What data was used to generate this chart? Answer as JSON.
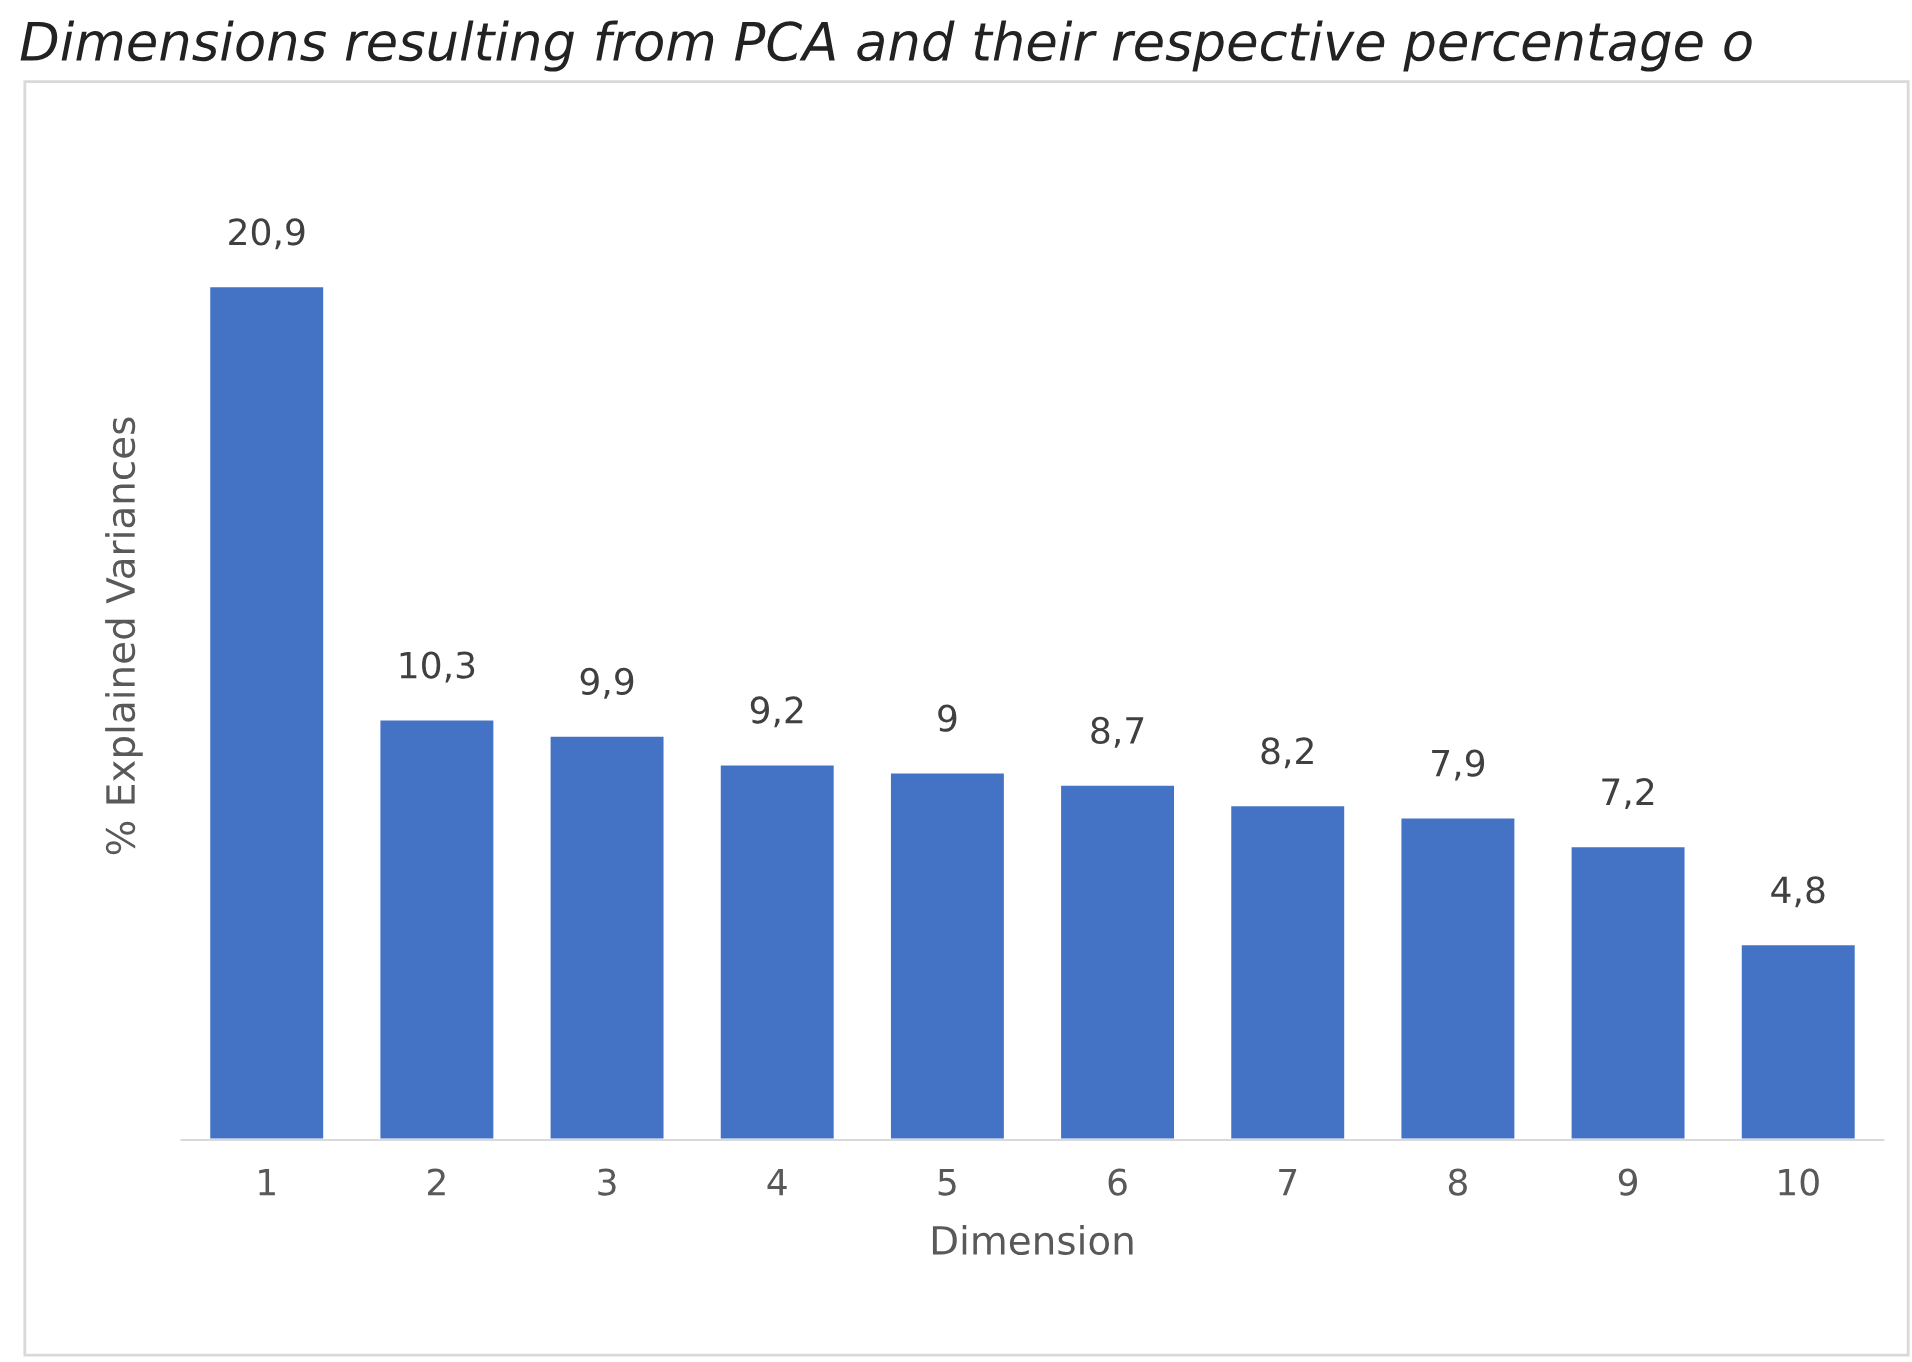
{
  "chart_data": {
    "type": "bar",
    "title": "Dimensions resulting from PCA and their respective percentage o",
    "xlabel": "Dimension",
    "ylabel": "% Explained Variances",
    "categories": [
      "1",
      "2",
      "3",
      "4",
      "5",
      "6",
      "7",
      "8",
      "9",
      "10"
    ],
    "values": [
      20.9,
      10.3,
      9.9,
      9.2,
      9,
      8.7,
      8.2,
      7.9,
      7.2,
      4.8
    ],
    "value_labels": [
      "20,9",
      "10,3",
      "9,9",
      "9,2",
      "9",
      "8,7",
      "8,2",
      "7,9",
      "7,2",
      "4,8"
    ],
    "color": "#4472c4",
    "grid": false,
    "legend": false
  }
}
